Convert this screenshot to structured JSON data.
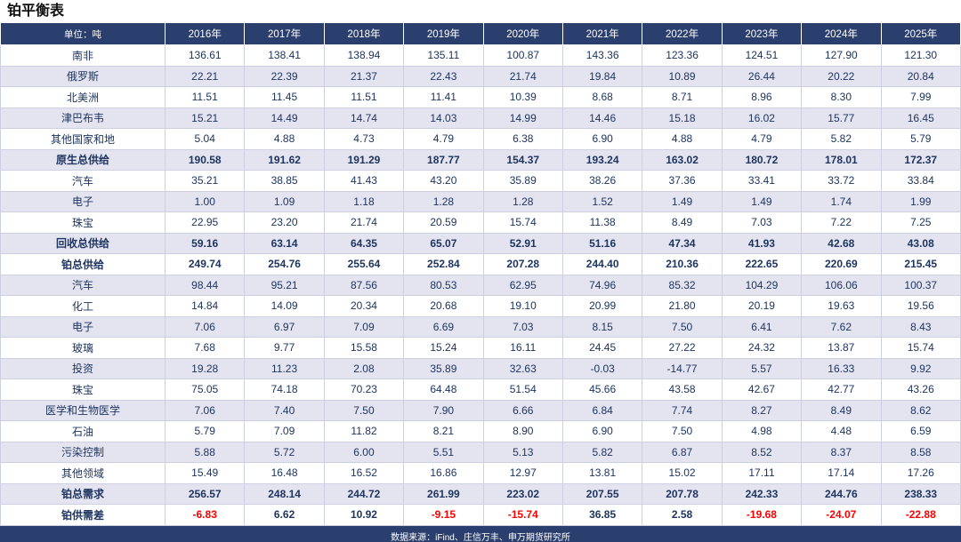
{
  "title": "铂平衡表",
  "footer": "数据来源：iFind、庄信万丰、申万期货研究所",
  "colors": {
    "header_bg": "#2b3f6e",
    "row_alt": "#e4e4f0",
    "text": "#1e3560",
    "negative": "#ff0000"
  },
  "chart_data": {
    "type": "table",
    "title": "铂平衡表",
    "unit_label": "单位：吨",
    "categories": [
      "2016年",
      "2017年",
      "2018年",
      "2019年",
      "2020年",
      "2021年",
      "2022年",
      "2023年",
      "2024年",
      "2025年"
    ],
    "rows": [
      {
        "label": "南非",
        "bold": false,
        "red_negatives": false,
        "values": [
          136.61,
          138.41,
          138.94,
          135.11,
          100.87,
          143.36,
          123.36,
          124.51,
          127.9,
          121.3
        ]
      },
      {
        "label": "俄罗斯",
        "bold": false,
        "red_negatives": false,
        "values": [
          22.21,
          22.39,
          21.37,
          22.43,
          21.74,
          19.84,
          10.89,
          26.44,
          20.22,
          20.84
        ]
      },
      {
        "label": "北美洲",
        "bold": false,
        "red_negatives": false,
        "values": [
          11.51,
          11.45,
          11.51,
          11.41,
          10.39,
          8.68,
          8.71,
          8.96,
          8.3,
          7.99
        ]
      },
      {
        "label": "津巴布韦",
        "bold": false,
        "red_negatives": false,
        "values": [
          15.21,
          14.49,
          14.74,
          14.03,
          14.99,
          14.46,
          15.18,
          16.02,
          15.77,
          16.45
        ]
      },
      {
        "label": "其他国家和地",
        "bold": false,
        "red_negatives": false,
        "values": [
          5.04,
          4.88,
          4.73,
          4.79,
          6.38,
          6.9,
          4.88,
          4.79,
          5.82,
          5.79
        ]
      },
      {
        "label": "原生总供给",
        "bold": true,
        "red_negatives": false,
        "values": [
          190.58,
          191.62,
          191.29,
          187.77,
          154.37,
          193.24,
          163.02,
          180.72,
          178.01,
          172.37
        ]
      },
      {
        "label": "汽车",
        "bold": false,
        "red_negatives": false,
        "values": [
          35.21,
          38.85,
          41.43,
          43.2,
          35.89,
          38.26,
          37.36,
          33.41,
          33.72,
          33.84
        ]
      },
      {
        "label": "电子",
        "bold": false,
        "red_negatives": false,
        "values": [
          1.0,
          1.09,
          1.18,
          1.28,
          1.28,
          1.52,
          1.49,
          1.49,
          1.74,
          1.99
        ]
      },
      {
        "label": "珠宝",
        "bold": false,
        "red_negatives": false,
        "values": [
          22.95,
          23.2,
          21.74,
          20.59,
          15.74,
          11.38,
          8.49,
          7.03,
          7.22,
          7.25
        ]
      },
      {
        "label": "回收总供给",
        "bold": true,
        "red_negatives": false,
        "values": [
          59.16,
          63.14,
          64.35,
          65.07,
          52.91,
          51.16,
          47.34,
          41.93,
          42.68,
          43.08
        ]
      },
      {
        "label": "铂总供给",
        "bold": true,
        "red_negatives": false,
        "values": [
          249.74,
          254.76,
          255.64,
          252.84,
          207.28,
          244.4,
          210.36,
          222.65,
          220.69,
          215.45
        ]
      },
      {
        "label": "汽车",
        "bold": false,
        "red_negatives": false,
        "values": [
          98.44,
          95.21,
          87.56,
          80.53,
          62.95,
          74.96,
          85.32,
          104.29,
          106.06,
          100.37
        ]
      },
      {
        "label": "化工",
        "bold": false,
        "red_negatives": false,
        "values": [
          14.84,
          14.09,
          20.34,
          20.68,
          19.1,
          20.99,
          21.8,
          20.19,
          19.63,
          19.56
        ]
      },
      {
        "label": "电子",
        "bold": false,
        "red_negatives": false,
        "values": [
          7.06,
          6.97,
          7.09,
          6.69,
          7.03,
          8.15,
          7.5,
          6.41,
          7.62,
          8.43
        ]
      },
      {
        "label": "玻璃",
        "bold": false,
        "red_negatives": false,
        "values": [
          7.68,
          9.77,
          15.58,
          15.24,
          16.11,
          24.45,
          27.22,
          24.32,
          13.87,
          15.74
        ]
      },
      {
        "label": "投资",
        "bold": false,
        "red_negatives": false,
        "values": [
          19.28,
          11.23,
          2.08,
          35.89,
          32.63,
          -0.03,
          -14.77,
          5.57,
          16.33,
          9.92
        ]
      },
      {
        "label": "珠宝",
        "bold": false,
        "red_negatives": false,
        "values": [
          75.05,
          74.18,
          70.23,
          64.48,
          51.54,
          45.66,
          43.58,
          42.67,
          42.77,
          43.26
        ]
      },
      {
        "label": "医学和生物医学",
        "bold": false,
        "red_negatives": false,
        "values": [
          7.06,
          7.4,
          7.5,
          7.9,
          6.66,
          6.84,
          7.74,
          8.27,
          8.49,
          8.62
        ]
      },
      {
        "label": "石油",
        "bold": false,
        "red_negatives": false,
        "values": [
          5.79,
          7.09,
          11.82,
          8.21,
          8.9,
          6.9,
          7.5,
          4.98,
          4.48,
          6.59
        ]
      },
      {
        "label": "污染控制",
        "bold": false,
        "red_negatives": false,
        "values": [
          5.88,
          5.72,
          6.0,
          5.51,
          5.13,
          5.82,
          6.87,
          8.52,
          8.37,
          8.58
        ]
      },
      {
        "label": "其他领域",
        "bold": false,
        "red_negatives": false,
        "values": [
          15.49,
          16.48,
          16.52,
          16.86,
          12.97,
          13.81,
          15.02,
          17.11,
          17.14,
          17.26
        ]
      },
      {
        "label": "铂总需求",
        "bold": true,
        "red_negatives": false,
        "values": [
          256.57,
          248.14,
          244.72,
          261.99,
          223.02,
          207.55,
          207.78,
          242.33,
          244.76,
          238.33
        ]
      },
      {
        "label": "铂供需差",
        "bold": true,
        "red_negatives": true,
        "values": [
          -6.83,
          6.62,
          10.92,
          -9.15,
          -15.74,
          36.85,
          2.58,
          -19.68,
          -24.07,
          -22.88
        ]
      }
    ]
  }
}
